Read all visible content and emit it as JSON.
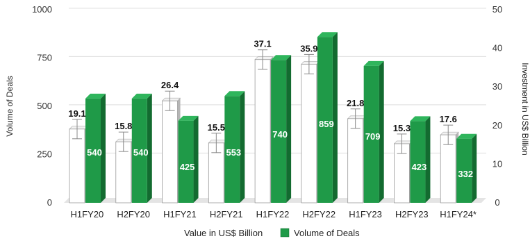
{
  "chart_data": {
    "type": "bar",
    "categories": [
      "H1FY20",
      "H2FY20",
      "H1FY21",
      "H2FY21",
      "H1FY22",
      "H2FY22",
      "H1FY23",
      "H2FY23",
      "H1FY24*"
    ],
    "series": [
      {
        "name": "Value in US$ Billion",
        "values": [
          19.1,
          15.8,
          26.4,
          15.5,
          37.1,
          35.9,
          21.8,
          15.3,
          17.6
        ],
        "axis": "right",
        "color": "#ffffff",
        "error_bars": true
      },
      {
        "name": "Volume of Deals",
        "values": [
          540,
          540,
          425,
          553,
          740,
          859,
          709,
          423,
          332
        ],
        "axis": "left",
        "color": "#1f9a48"
      }
    ],
    "ylabel": "Volume of Deals",
    "y2label": "Investment in US$ Billion",
    "ylim": [
      0,
      1000
    ],
    "y2lim": [
      0,
      50
    ],
    "yticks": [
      "0",
      "250",
      "500",
      "750",
      "1000"
    ],
    "y2ticks": [
      "0",
      "10",
      "20",
      "30",
      "40",
      "50"
    ],
    "grid": true,
    "legend_position": "bottom",
    "style": "3d-clustered-bar"
  }
}
